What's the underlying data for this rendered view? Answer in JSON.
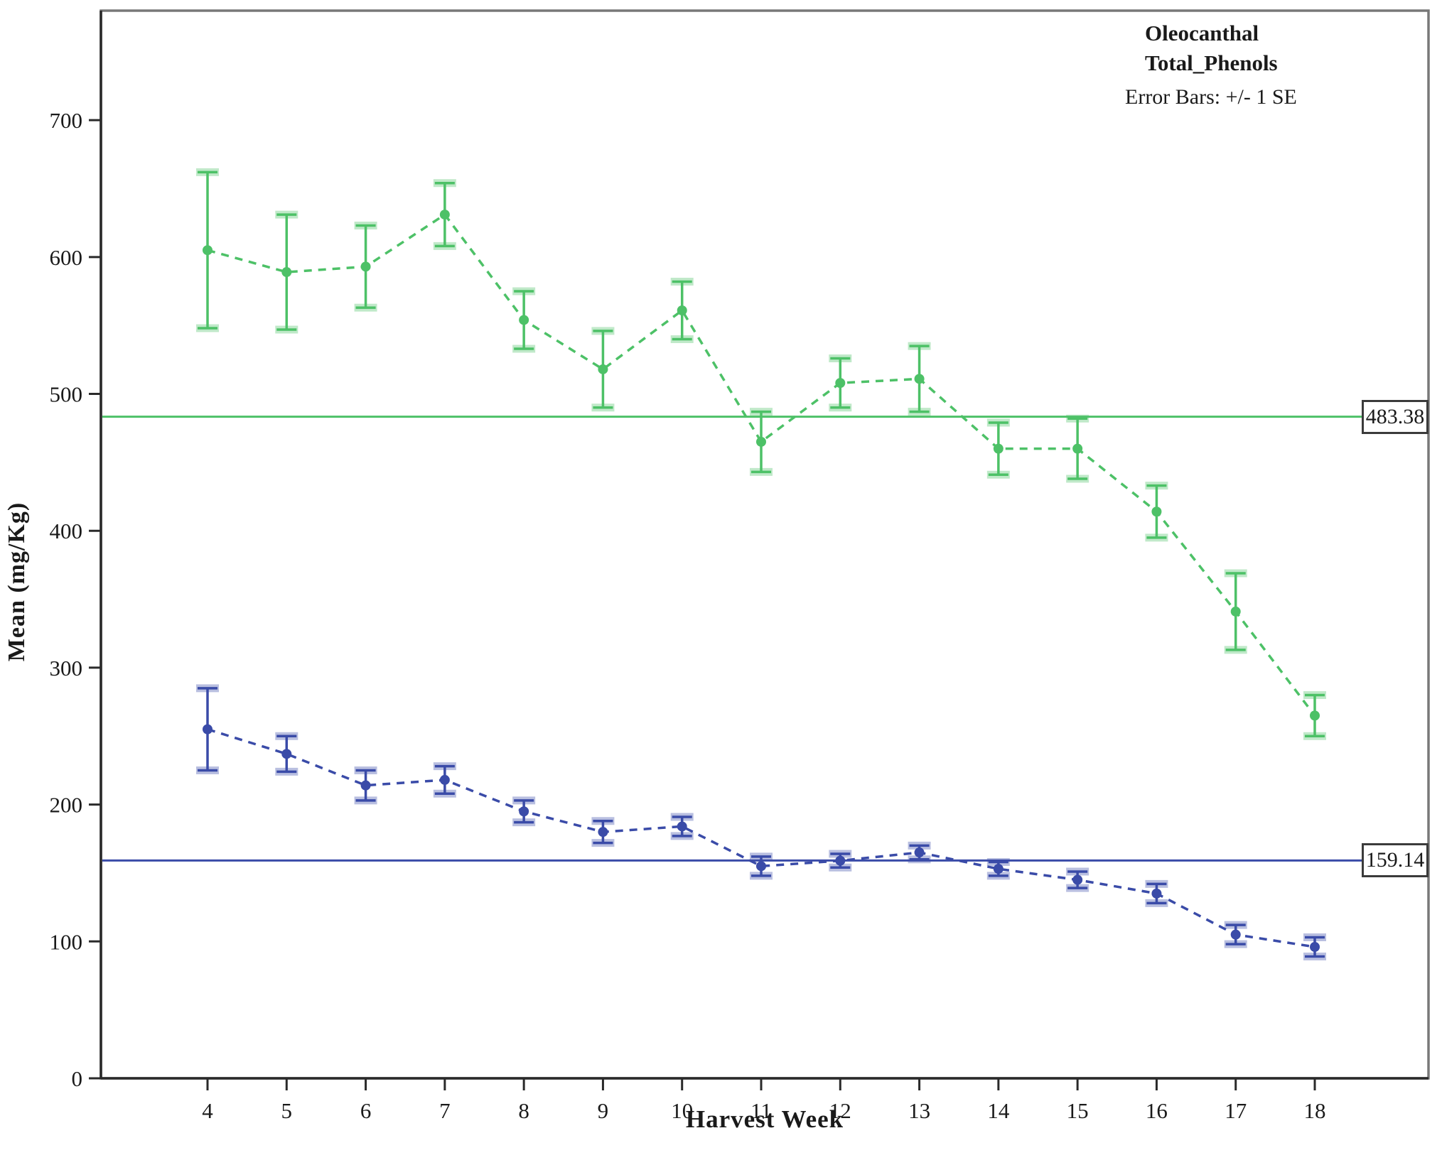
{
  "page": {
    "background": "#ffffff",
    "frame_color": "#787878"
  },
  "axes": {
    "x_title": "Harvest Week",
    "y_title": "Mean (mg/Kg)"
  },
  "legend": {
    "items": [
      {
        "label": "Oleocanthal",
        "color": "#3A4BA8"
      },
      {
        "label": "Total_Phenols",
        "color": "#4DC167"
      }
    ],
    "note": "Error Bars: +/- 1 SE"
  },
  "chart_data": {
    "type": "line",
    "title": "",
    "xlabel": "Harvest Week",
    "ylabel": "Mean (mg/Kg)",
    "x": [
      4,
      5,
      6,
      7,
      8,
      9,
      10,
      11,
      12,
      13,
      14,
      15,
      16,
      17,
      18
    ],
    "ylim": [
      0,
      780
    ],
    "yticks": [
      0,
      100,
      200,
      300,
      400,
      500,
      600,
      700
    ],
    "grid": false,
    "line_style": "dashed",
    "error_bars": "+/- 1 SE",
    "legend_position": "top-right",
    "series": [
      {
        "name": "Oleocanthal",
        "color": "#3A4BA8",
        "values": [
          255,
          237,
          214,
          218,
          195,
          180,
          184,
          155,
          159,
          165,
          153,
          145,
          135,
          105,
          96
        ],
        "se": [
          30,
          13,
          11,
          10,
          8,
          8,
          7,
          7,
          5,
          5,
          5,
          6,
          7,
          7,
          7
        ],
        "mean_ref_line": {
          "value": 159.14,
          "label": "159.14"
        }
      },
      {
        "name": "Total_Phenols",
        "color": "#4DC167",
        "values": [
          605,
          589,
          593,
          631,
          554,
          518,
          561,
          465,
          508,
          511,
          460,
          460,
          414,
          341,
          265
        ],
        "se": [
          57,
          42,
          30,
          23,
          21,
          28,
          21,
          22,
          18,
          24,
          19,
          22,
          19,
          28,
          15
        ],
        "mean_ref_line": {
          "value": 483.38,
          "label": "483.38"
        }
      }
    ]
  }
}
